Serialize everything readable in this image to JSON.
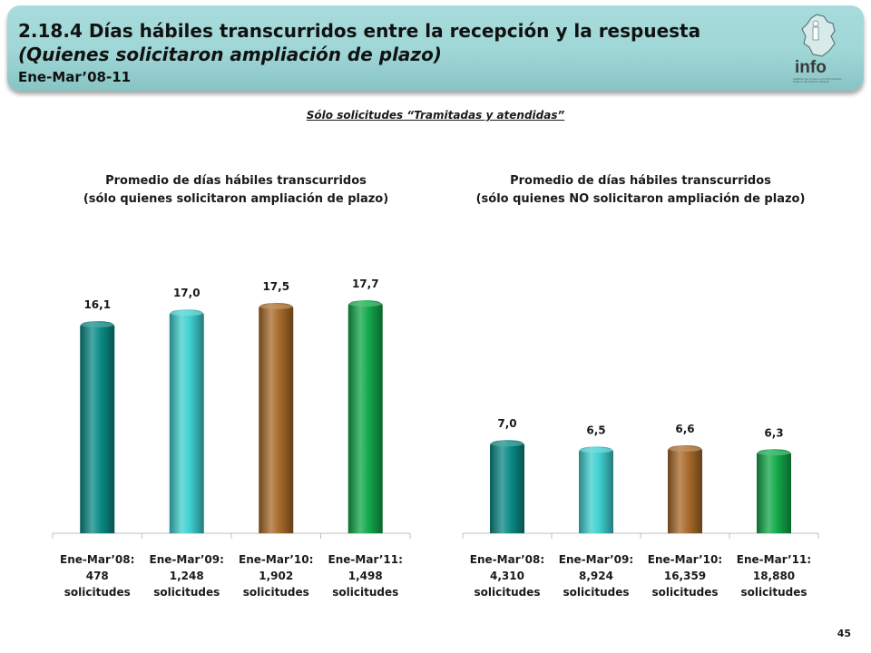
{
  "header": {
    "title": "2.18.4 Días hábiles transcurridos entre la recepción y la respuesta",
    "subtitle": "(Quienes solicitaron ampliación de plazo)",
    "period": "Ene-Mar’08-11",
    "logo_text": "info",
    "logo_tagline": "Instituto de Acceso a la Información Pública del Distrito Federal"
  },
  "note": "Sólo solicitudes “Tramitadas y atendidas”",
  "page_number": "45",
  "colors": {
    "2008": "#0b8a86",
    "2009": "#3fcfcf",
    "2010": "#a86a2a",
    "2011": "#12a84a"
  },
  "chart_data": [
    {
      "type": "bar",
      "title_line1": "Promedio de días hábiles transcurridos",
      "title_line2": "(sólo quienes solicitaron ampliación de plazo)",
      "categories": [
        [
          "Ene-Mar’08:",
          "478",
          "solicitudes"
        ],
        [
          "Ene-Mar’09:",
          "1,248",
          "solicitudes"
        ],
        [
          "Ene-Mar’10:",
          "1,902",
          "solicitudes"
        ],
        [
          "Ene-Mar’11:",
          "1,498",
          "solicitudes"
        ]
      ],
      "values": [
        16.1,
        17.0,
        17.5,
        17.7
      ],
      "value_labels": [
        "16,1",
        "17,0",
        "17,5",
        "17,7"
      ],
      "colors": [
        "#0b8a86",
        "#3fcfcf",
        "#a86a2a",
        "#12a84a"
      ]
    },
    {
      "type": "bar",
      "title_line1": "Promedio de días hábiles transcurridos",
      "title_line2": "(sólo quienes NO solicitaron ampliación de plazo)",
      "categories": [
        [
          "Ene-Mar’08:",
          "4,310",
          "solicitudes"
        ],
        [
          "Ene-Mar’09:",
          "8,924",
          "solicitudes"
        ],
        [
          "Ene-Mar’10:",
          "16,359",
          "solicitudes"
        ],
        [
          "Ene-Mar’11:",
          "18,880",
          "solicitudes"
        ]
      ],
      "values": [
        7.0,
        6.5,
        6.6,
        6.3
      ],
      "value_labels": [
        "7,0",
        "6,5",
        "6,6",
        "6,3"
      ],
      "colors": [
        "#0b8a86",
        "#3fcfcf",
        "#a86a2a",
        "#12a84a"
      ]
    }
  ]
}
